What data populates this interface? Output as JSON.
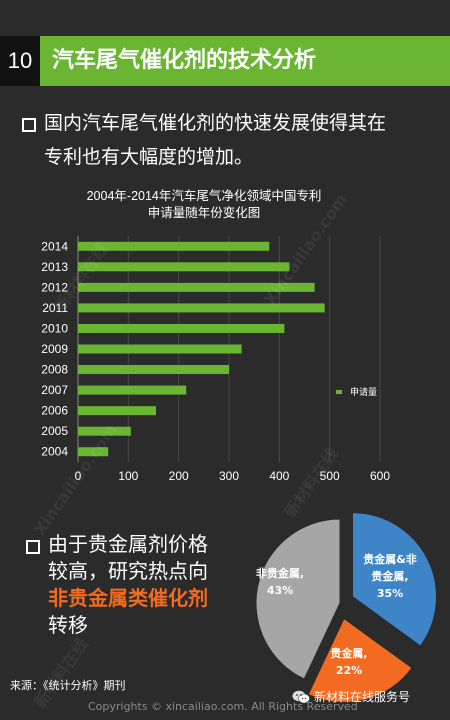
{
  "header": {
    "number": "10",
    "title": "汽车尾气催化剂的技术分析"
  },
  "intro": {
    "line1": "国内汽车尾气催化剂的快速发展使得其在",
    "line2": "专利也有大幅度的增加。"
  },
  "conclusion": {
    "line1": "由于贵金属剂价格",
    "line2": "较高，研究热点向",
    "highlight": "非贵金属类催化剂",
    "line4": "转移"
  },
  "chart_data": [
    {
      "type": "bar",
      "orientation": "horizontal",
      "title": "2004年-2014年汽车尾气净化领域中国专利",
      "subtitle": "申请量随年份变化图",
      "categories": [
        "2004",
        "2005",
        "2006",
        "2007",
        "2008",
        "2009",
        "2010",
        "2011",
        "2012",
        "2013",
        "2014"
      ],
      "series": [
        {
          "name": "申请量",
          "values": [
            60,
            105,
            155,
            215,
            300,
            325,
            410,
            490,
            470,
            420,
            380
          ]
        }
      ],
      "xlim": [
        0,
        600
      ],
      "xticks": [
        "0",
        "100",
        "200",
        "300",
        "400",
        "500",
        "600"
      ],
      "grid": true,
      "legend_position": "right",
      "color": "#6ab633"
    },
    {
      "type": "pie",
      "slices": [
        {
          "label": "非贵金属,",
          "value": 43,
          "value_label": "43%",
          "color": "#a6a6a6"
        },
        {
          "label": "贵金属&非贵金属,",
          "value": 35,
          "value_label": "35%",
          "color": "#3d85c6"
        },
        {
          "label": "贵金属,",
          "value": 22,
          "value_label": "22%",
          "color": "#f26b21"
        }
      ]
    }
  ],
  "footer": {
    "source": "来源：《统计分析》期刊",
    "copyright": "Copyrights © xincailiao.com. All Rights Reserved",
    "wechat": "新材料在线服务号"
  },
  "watermark": {
    "cn": "新材料在线",
    "en": "Xincailiao.com"
  }
}
